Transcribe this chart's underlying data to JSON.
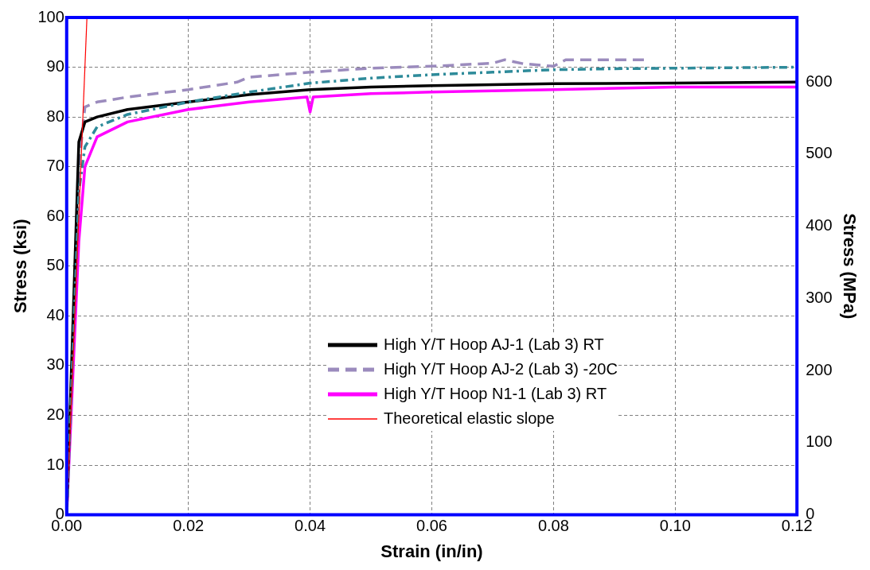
{
  "chart_data": {
    "type": "line",
    "xlabel": "Strain (in/in)",
    "ylabel": "Stress (ksi)",
    "y2label": "Stress (MPa)",
    "xlim": [
      0,
      0.12
    ],
    "xticks": [
      {
        "value": 0,
        "label": "0.00"
      },
      {
        "value": 0.02,
        "label": "0.02"
      },
      {
        "value": 0.04,
        "label": "0.04"
      },
      {
        "value": 0.06,
        "label": "0.06"
      },
      {
        "value": 0.08,
        "label": "0.08"
      },
      {
        "value": 0.1,
        "label": "0.10"
      },
      {
        "value": 0.12,
        "label": "0.12"
      }
    ],
    "ylim": [
      0,
      100
    ],
    "yticks": [
      0,
      10,
      20,
      30,
      40,
      50,
      60,
      70,
      80,
      90,
      100
    ],
    "y2lim": [
      0,
      689.5
    ],
    "y2ticks": [
      0,
      100,
      200,
      300,
      400,
      500,
      600
    ],
    "grid": true,
    "legend": "bottom right",
    "marker": "none",
    "series": [
      {
        "color": "#2e8b9a",
        "line_style": "dashdot",
        "x": [
          0,
          0.002,
          0.003,
          0.005,
          0.01,
          0.02,
          0.03,
          0.04,
          0.05,
          0.06,
          0.07,
          0.08,
          0.09,
          0.1,
          0.12
        ],
        "values": [
          0,
          65,
          74,
          78,
          80.5,
          83,
          85,
          86.8,
          87.8,
          88.5,
          89,
          89.5,
          89.7,
          89.8,
          90
        ]
      },
      {
        "name": "High Y/T Hoop AJ-1 (Lab 3) RT",
        "color": "#000000",
        "line_style": "solid",
        "x": [
          0,
          0.002,
          0.003,
          0.005,
          0.01,
          0.02,
          0.03,
          0.04,
          0.05,
          0.06,
          0.07,
          0.08,
          0.1,
          0.12
        ],
        "values": [
          0,
          75,
          79,
          80,
          81.5,
          83,
          84.5,
          85.5,
          86,
          86.3,
          86.5,
          86.7,
          86.8,
          87
        ]
      },
      {
        "name": "High Y/T Hoop AJ-2 (Lab 3) -20C",
        "color": "#9b8bbd",
        "line_style": "dashed",
        "x": [
          0,
          0.002,
          0.003,
          0.005,
          0.01,
          0.02,
          0.028,
          0.03,
          0.04,
          0.05,
          0.06,
          0.07,
          0.072,
          0.075,
          0.08,
          0.082,
          0.095
        ],
        "values": [
          0,
          70,
          82,
          83,
          84,
          85.5,
          87,
          88,
          89,
          89.8,
          90.2,
          90.8,
          91.5,
          90.7,
          90.2,
          91.5,
          91.5
        ]
      },
      {
        "name": "High Y/T Hoop N1-1 (Lab 3) RT",
        "color": "#ff00ff",
        "line_style": "solid",
        "x": [
          0,
          0.002,
          0.003,
          0.005,
          0.01,
          0.02,
          0.03,
          0.0395,
          0.04,
          0.0405,
          0.05,
          0.06,
          0.08,
          0.1,
          0.12
        ],
        "values": [
          0,
          55,
          70,
          76,
          79,
          81.5,
          83,
          84,
          81,
          84,
          84.7,
          85,
          85.5,
          86,
          86
        ]
      },
      {
        "name": "Theoretical elastic slope",
        "color": "#ff0000",
        "line_style": "solid",
        "x": [
          0,
          0.00333
        ],
        "values": [
          0,
          100
        ]
      }
    ]
  }
}
